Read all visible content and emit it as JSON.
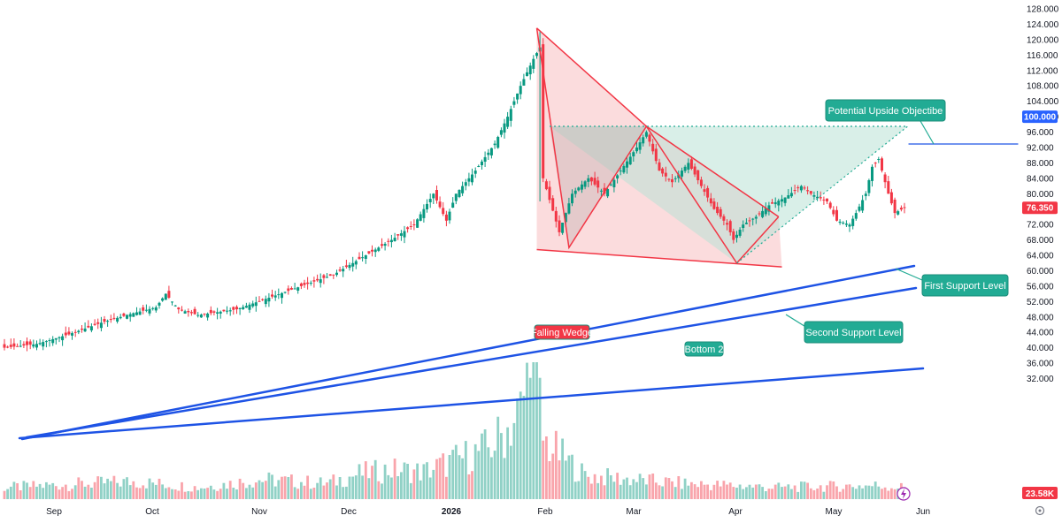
{
  "chart_data": {
    "type": "candlestick",
    "price_scale": {
      "ticks": [
        128,
        124,
        120,
        116,
        112,
        108,
        104,
        100,
        96,
        92,
        88,
        84,
        80,
        76,
        72,
        68,
        64,
        60,
        56,
        52,
        48,
        44,
        40,
        36,
        32
      ],
      "labels": [
        "128.000",
        "124.000",
        "120.000",
        "116.000",
        "112.000",
        "108.000",
        "104.000",
        "100.000",
        "96.000",
        "92.000",
        "88.000",
        "84.000",
        "80.000",
        "76.000",
        "72.000",
        "68.000",
        "64.000",
        "60.000",
        "56.000",
        "52.000",
        "48.000",
        "44.000",
        "40.000",
        "36.000",
        "32.000"
      ],
      "ylim": [
        31,
        130
      ]
    },
    "time_axis": [
      "Sep",
      "Oct",
      "Nov",
      "Dec",
      "2026",
      "Feb",
      "Mar",
      "Apr",
      "May",
      "Jun"
    ],
    "last_price": {
      "value": 76.35,
      "label": "76.350",
      "color": "#f23645"
    },
    "target_level": {
      "value": 100,
      "label": "100.000",
      "color": "#2962ff"
    },
    "volume_label": {
      "label": "23.58K",
      "color": "#f23645"
    },
    "colors": {
      "up": "#089981",
      "down": "#f23645",
      "trendline": "#1e53e5",
      "wedge_fill": "#f8bfc1",
      "target_fill": "#b9e1d6",
      "label_bg": "#22ab94"
    },
    "annotations": {
      "falling_wedge": "Falling Wedge",
      "bottom2": "Bottom 2",
      "upside": "Potential Upside Objectibe",
      "first_support": "First Support Level",
      "second_support": "Second Support Level"
    },
    "close_keyframes": [
      [
        0,
        40
      ],
      [
        10,
        41
      ],
      [
        20,
        43.5
      ],
      [
        30,
        46.5
      ],
      [
        40,
        49
      ],
      [
        47,
        50.5
      ],
      [
        50,
        54
      ],
      [
        54,
        50
      ],
      [
        60,
        48.5
      ],
      [
        72,
        50
      ],
      [
        82,
        53
      ],
      [
        92,
        56
      ],
      [
        102,
        59
      ],
      [
        112,
        64
      ],
      [
        120,
        68
      ],
      [
        127,
        72
      ],
      [
        133,
        80
      ],
      [
        137,
        73
      ],
      [
        140,
        80
      ],
      [
        146,
        86
      ],
      [
        152,
        93
      ],
      [
        156,
        100
      ],
      [
        160,
        108
      ],
      [
        164,
        115
      ],
      [
        166,
        118
      ],
      [
        167,
        84
      ],
      [
        172,
        70
      ],
      [
        176,
        80
      ],
      [
        181,
        84
      ],
      [
        186,
        80
      ],
      [
        191,
        86
      ],
      [
        196,
        92
      ],
      [
        199,
        96
      ],
      [
        203,
        86
      ],
      [
        207,
        83
      ],
      [
        212,
        88
      ],
      [
        216,
        82
      ],
      [
        220,
        76
      ],
      [
        224,
        72
      ],
      [
        226,
        68
      ],
      [
        229,
        72
      ],
      [
        233,
        74
      ],
      [
        237,
        77
      ],
      [
        242,
        79
      ],
      [
        247,
        82
      ],
      [
        250,
        80
      ],
      [
        255,
        78
      ],
      [
        258,
        73
      ],
      [
        262,
        72
      ],
      [
        264,
        75
      ],
      [
        267,
        80
      ],
      [
        269,
        87
      ],
      [
        271,
        89
      ],
      [
        274,
        80
      ],
      [
        276,
        75
      ],
      [
        279,
        76.35
      ]
    ],
    "volume_keyframes": [
      [
        0,
        6
      ],
      [
        40,
        9
      ],
      [
        60,
        6
      ],
      [
        80,
        10
      ],
      [
        100,
        8
      ],
      [
        110,
        13
      ],
      [
        120,
        15
      ],
      [
        130,
        14
      ],
      [
        140,
        20
      ],
      [
        150,
        26
      ],
      [
        155,
        34
      ],
      [
        160,
        45
      ],
      [
        163,
        68
      ],
      [
        165,
        55
      ],
      [
        167,
        30
      ],
      [
        180,
        12
      ],
      [
        210,
        8
      ],
      [
        240,
        6
      ],
      [
        270,
        7
      ],
      [
        279,
        6
      ]
    ]
  }
}
